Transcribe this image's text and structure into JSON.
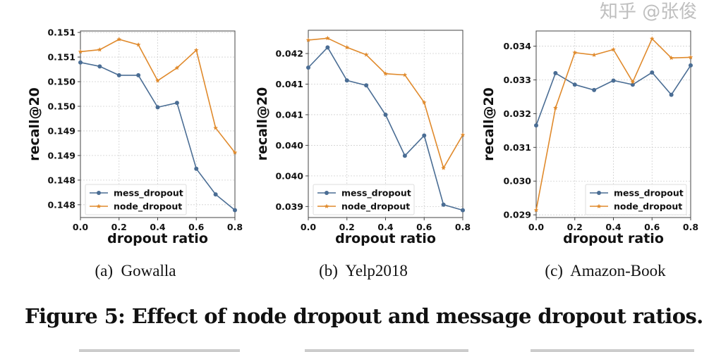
{
  "colors": {
    "mess_dropout": "#4a6d94",
    "node_dropout": "#e08a2c",
    "grid": "#cfcfcf"
  },
  "chart_data": [
    {
      "type": "line",
      "x": [
        0.0,
        0.1,
        0.2,
        0.3,
        0.4,
        0.5,
        0.6,
        0.7,
        0.8
      ],
      "xlabel": "dropout ratio",
      "ylabel": "recall@20",
      "xlim": [
        0.0,
        0.8
      ],
      "ylim": [
        0.14774,
        0.15153
      ],
      "xticks": [
        0.0,
        0.2,
        0.4,
        0.6,
        0.8
      ],
      "xtick_labels": [
        "0.0",
        "0.2",
        "0.4",
        "0.6",
        "0.8"
      ],
      "yticks": [
        0.1515,
        0.151,
        0.1505,
        0.15,
        0.1495,
        0.149,
        0.1485,
        0.148
      ],
      "ytick_labels": [
        "0.151",
        "0.151",
        "0.150",
        "0.150",
        "0.149",
        "0.149",
        "0.148",
        "0.148"
      ],
      "grid": true,
      "legend": "lower-left",
      "series": [
        {
          "name": "mess_dropout",
          "marker": "circle",
          "values": [
            0.15089,
            0.15081,
            0.15063,
            0.15063,
            0.14998,
            0.15007,
            0.14873,
            0.14821,
            0.14789
          ]
        },
        {
          "name": "node_dropout",
          "marker": "star",
          "values": [
            0.15111,
            0.15115,
            0.15136,
            0.15125,
            0.15052,
            0.15078,
            0.15114,
            0.14956,
            0.14906
          ]
        }
      ],
      "caption": "(a)  Gowalla"
    },
    {
      "type": "line",
      "x": [
        0.0,
        0.1,
        0.2,
        0.3,
        0.4,
        0.5,
        0.6,
        0.7,
        0.8
      ],
      "xlabel": "dropout ratio",
      "ylabel": "recall@20",
      "xlim": [
        0.0,
        0.8
      ],
      "ylim": [
        0.03932,
        0.04238
      ],
      "xticks": [
        0.0,
        0.2,
        0.4,
        0.6,
        0.8
      ],
      "xtick_labels": [
        "0.0",
        "0.2",
        "0.4",
        "0.6",
        "0.8"
      ],
      "yticks": [
        0.042,
        0.0415,
        0.041,
        0.0405,
        0.04,
        0.0395
      ],
      "ytick_labels": [
        "0.042",
        "0.041",
        "0.041",
        "0.040",
        "0.040",
        "0.039"
      ],
      "grid": true,
      "legend": "lower-left",
      "series": [
        {
          "name": "mess_dropout",
          "marker": "circle",
          "values": [
            0.04177,
            0.0421,
            0.04156,
            0.04148,
            0.041,
            0.04033,
            0.04066,
            0.03953,
            0.03944
          ]
        },
        {
          "name": "node_dropout",
          "marker": "star",
          "values": [
            0.04222,
            0.04225,
            0.0421,
            0.04198,
            0.04167,
            0.04165,
            0.0412,
            0.04013,
            0.04067
          ]
        }
      ],
      "caption": "(b)  Yelp2018"
    },
    {
      "type": "line",
      "x": [
        0.0,
        0.1,
        0.2,
        0.3,
        0.4,
        0.5,
        0.6,
        0.7,
        0.8
      ],
      "xlabel": "dropout ratio",
      "ylabel": "recall@20",
      "xlim": [
        0.0,
        0.8
      ],
      "ylim": [
        0.02892,
        0.03445
      ],
      "xticks": [
        0.0,
        0.2,
        0.4,
        0.6,
        0.8
      ],
      "xtick_labels": [
        "0.0",
        "0.2",
        "0.4",
        "0.6",
        "0.8"
      ],
      "yticks": [
        0.034,
        0.033,
        0.032,
        0.031,
        0.03,
        0.029
      ],
      "ytick_labels": [
        "0.034",
        "0.033",
        "0.032",
        "0.031",
        "0.030",
        "0.029"
      ],
      "grid": true,
      "legend": "lower-right",
      "series": [
        {
          "name": "mess_dropout",
          "marker": "circle",
          "values": [
            0.03165,
            0.0332,
            0.03286,
            0.0327,
            0.03298,
            0.03286,
            0.03322,
            0.03256,
            0.03343
          ]
        },
        {
          "name": "node_dropout",
          "marker": "star",
          "values": [
            0.02914,
            0.03217,
            0.03381,
            0.03374,
            0.0339,
            0.03294,
            0.03422,
            0.03365,
            0.03367
          ]
        }
      ],
      "caption": "(c)  Amazon-Book"
    }
  ],
  "figure_title": "Figure 5: Effect of node dropout and message dropout ratios.",
  "watermark": "知乎 @张俊"
}
